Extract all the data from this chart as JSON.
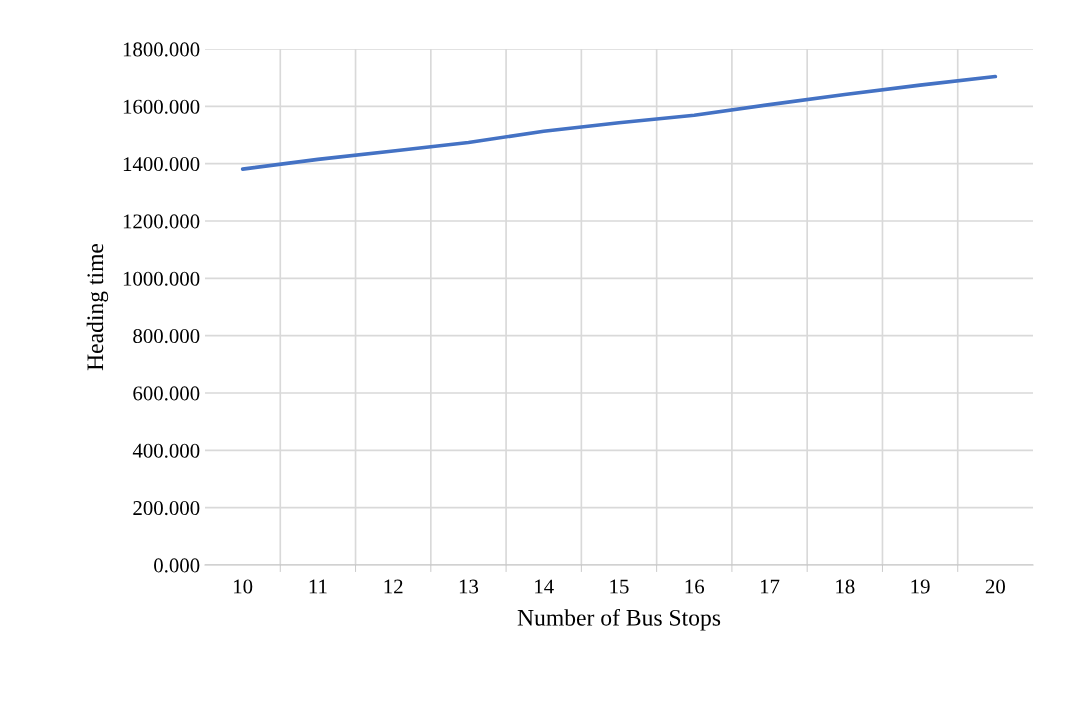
{
  "chart_data": {
    "type": "line",
    "xlabel": "Number of Bus Stops",
    "ylabel": "Heading time",
    "categories": [
      "10",
      "11",
      "12",
      "13",
      "14",
      "15",
      "16",
      "17",
      "18",
      "19",
      "20"
    ],
    "series": [
      {
        "color": "#4472c4",
        "values": [
          1381,
          1415,
          1444,
          1474,
          1513,
          1543,
          1569,
          1606,
          1641,
          1674,
          1704
        ]
      }
    ],
    "ylim": [
      0,
      1800
    ],
    "yticks": [
      {
        "value": 0,
        "label": "0.000"
      },
      {
        "value": 200,
        "label": "200.000"
      },
      {
        "value": 400,
        "label": "400.000"
      },
      {
        "value": 600,
        "label": "600.000"
      },
      {
        "value": 800,
        "label": "800.000"
      },
      {
        "value": 1000,
        "label": "1000.000"
      },
      {
        "value": 1200,
        "label": "1200.000"
      },
      {
        "value": 1400,
        "label": "1400.000"
      },
      {
        "value": 1600,
        "label": "1600.000"
      },
      {
        "value": 1800,
        "label": "1800.000"
      }
    ],
    "grid": true,
    "marker": "none"
  }
}
